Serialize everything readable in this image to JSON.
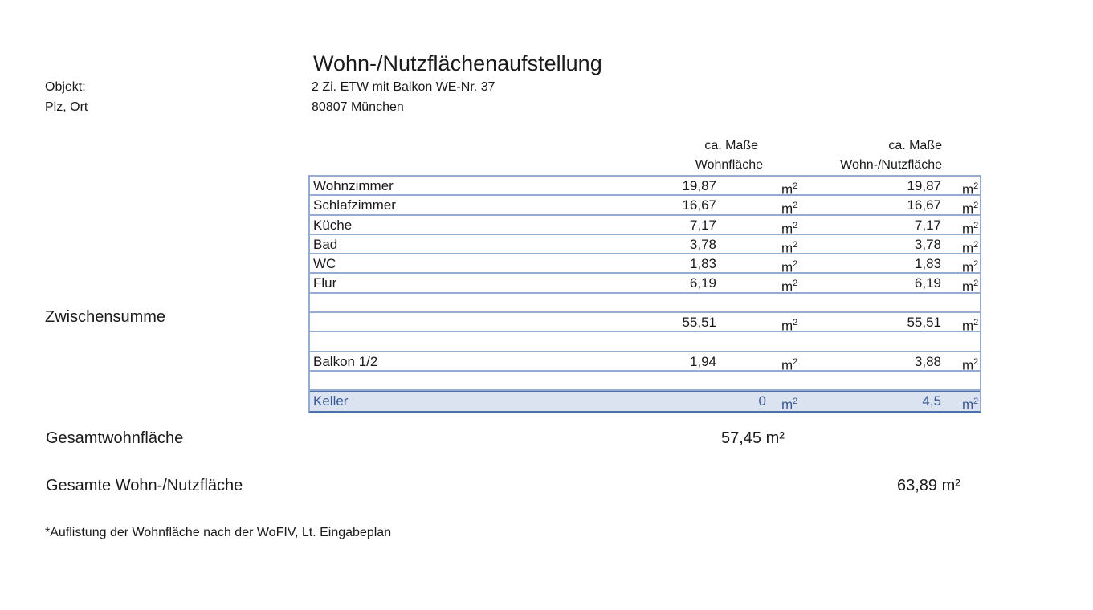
{
  "title": "Wohn-/Nutzflächenaufstellung",
  "objekt_label": "Objekt:",
  "objekt_value": "2 Zi. ETW mit Balkon WE-Nr. 37",
  "ort_label": "Plz, Ort",
  "ort_value": "80807 München",
  "columns": {
    "col1_line1": "ca. Maße",
    "col1_line2": "Wohnfläche",
    "col2_line1": "ca. Maße",
    "col2_line2": "Wohn-/Nutzfläche",
    "unit_base": "m",
    "unit_exp": "2"
  },
  "rows": [
    {
      "name": "Wohnzimmer",
      "v1": "19,87",
      "v2": "19,87"
    },
    {
      "name": "Schlafzimmer",
      "v1": "16,67",
      "v2": "16,67"
    },
    {
      "name": "Küche",
      "v1": "7,17",
      "v2": "7,17"
    },
    {
      "name": "Bad",
      "v1": "3,78",
      "v2": "3,78"
    },
    {
      "name": "WC",
      "v1": "1,83",
      "v2": "1,83"
    },
    {
      "name": "Flur",
      "v1": "6,19",
      "v2": "6,19"
    },
    {
      "name": "",
      "v1": "",
      "v2": ""
    },
    {
      "name": "",
      "v1": "55,51",
      "v2": "55,51"
    },
    {
      "name": "",
      "v1": "",
      "v2": ""
    },
    {
      "name": "Balkon 1/2",
      "v1": "1,94",
      "v2": "3,88"
    },
    {
      "name": "",
      "v1": "",
      "v2": ""
    },
    {
      "name": "Keller",
      "v1": "0",
      "v2": "4,5"
    }
  ],
  "zwischensumme_label": "Zwischensumme",
  "gesamtwohnflaeche_label": "Gesamtwohnfläche",
  "gesamtwohnflaeche_value": "57,45 m²",
  "gesamt_nutz_label": "Gesamte Wohn-/Nutzfläche",
  "gesamt_nutz_value": "63,89 m²",
  "footnote": "*Auflistung der Wohnfläche nach der WoFIV, Lt. Eingabeplan"
}
